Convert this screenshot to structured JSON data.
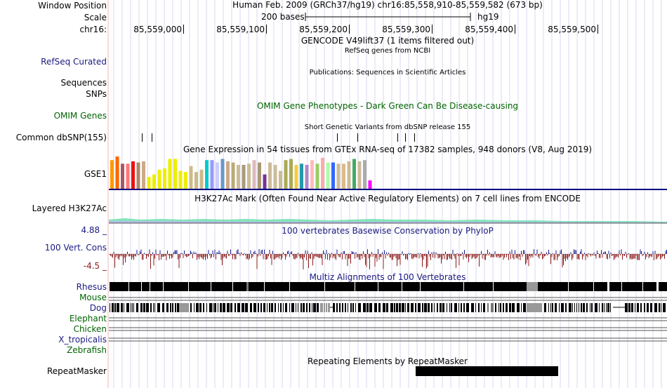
{
  "header": {
    "window_position_label": "Window Position",
    "window_position_text": "Human Feb. 2009 (GRCh37/hg19)   chr16:85,558,910-85,559,582 (673 bp)",
    "scale_label": "Scale",
    "scale_text": "200 bases",
    "scale_assembly": "hg19",
    "chrom_label": "chr16:",
    "ticks": [
      "85,559,000",
      "85,559,100",
      "85,559,200",
      "85,559,300",
      "85,559,400",
      "85,559,500"
    ]
  },
  "tracks": {
    "gencode_title": "GENCODE V49lift37 (1 items filtered out)",
    "refseq_title": "RefSeq genes from NCBI",
    "refseq_label": "RefSeq Curated",
    "publications_title": "Publications: Sequences in Scientific Articles",
    "sequences_label": "Sequences",
    "snps_label": "SNPs",
    "omim_title": "OMIM Gene Phenotypes - Dark Green Can Be Disease-causing",
    "omim_label": "OMIM Genes",
    "dbsnp_title": "Short Genetic Variants from dbSNP release 155",
    "dbsnp_label": "Common dbSNP(155)",
    "gtex_title": "Gene Expression in 54 tissues from GTEx RNA-seq of 17382 samples, 948 donors (V8, Aug 2019)",
    "gtex_label": "GSE1",
    "h3k27ac_title": "H3K27Ac Mark (Often Found Near Active Regulatory Elements) on 7 cell lines from ENCODE",
    "h3k27ac_label": "Layered H3K27Ac",
    "cons_title": "100 vertebrates Basewise Conservation by PhyloP",
    "cons_label": "100 Vert. Cons",
    "cons_max": "4.88 _",
    "cons_min": "-4.5 _",
    "multiz_title": "Multiz Alignments of 100 Vertebrates",
    "species": [
      "Rhesus",
      "Mouse",
      "Dog",
      "Elephant",
      "Chicken",
      "X_tropicalis",
      "Zebrafish"
    ],
    "repeat_title": "Repeating Elements by RepeatMasker",
    "repeat_label": "RepeatMasker"
  },
  "gtex": {
    "colors": [
      "#ff9900",
      "#ff6600",
      "#aa5566",
      "#ff7777",
      "#ee1111",
      "#aa8866",
      "#ccaa88",
      "#eeee00",
      "#eeee00",
      "#eeee00",
      "#eeee00",
      "#eeee00",
      "#eeee00",
      "#eeee00",
      "#eeee00",
      "#ccbb88",
      "#ccbb88",
      "#ccbb88",
      "#00cccc",
      "#9999ff",
      "#ccccff",
      "#6699cc",
      "#ccaa88",
      "#bbaa77",
      "#ccbb99",
      "#aa9977",
      "#ccbb99",
      "#ddbbbb",
      "#aa9977",
      "#773399",
      "#ccbb99",
      "#ccbb99",
      "#ccbb99",
      "#aaaa55",
      "#aaaa55",
      "#eecc44",
      "#2299aa",
      "#aa88cc",
      "#ffbbbb",
      "#99cc66",
      "#ffaaaa",
      "#aaffaa",
      "#3366ff",
      "#ccbb99",
      "#ddbb88",
      "#ccbb99",
      "#44aa66",
      "#ccbb99",
      "#aaaaaa",
      "#ff00ff"
    ],
    "values": [
      2.4,
      2.7,
      2.1,
      2.1,
      2.3,
      2.2,
      2.3,
      1.0,
      1.2,
      1.6,
      1.7,
      2.5,
      2.5,
      1.5,
      1.4,
      1.9,
      1.4,
      1.6,
      2.4,
      2.4,
      2.2,
      2.5,
      2.3,
      2.2,
      2.0,
      2.0,
      2.1,
      2.4,
      2.2,
      1.2,
      2.2,
      2.0,
      1.5,
      2.4,
      2.5,
      2.0,
      2.1,
      2.0,
      2.4,
      2.1,
      2.6,
      2.2,
      2.2,
      2.1,
      2.1,
      2.3,
      2.5,
      2.3,
      2.4,
      0.7
    ]
  }
}
